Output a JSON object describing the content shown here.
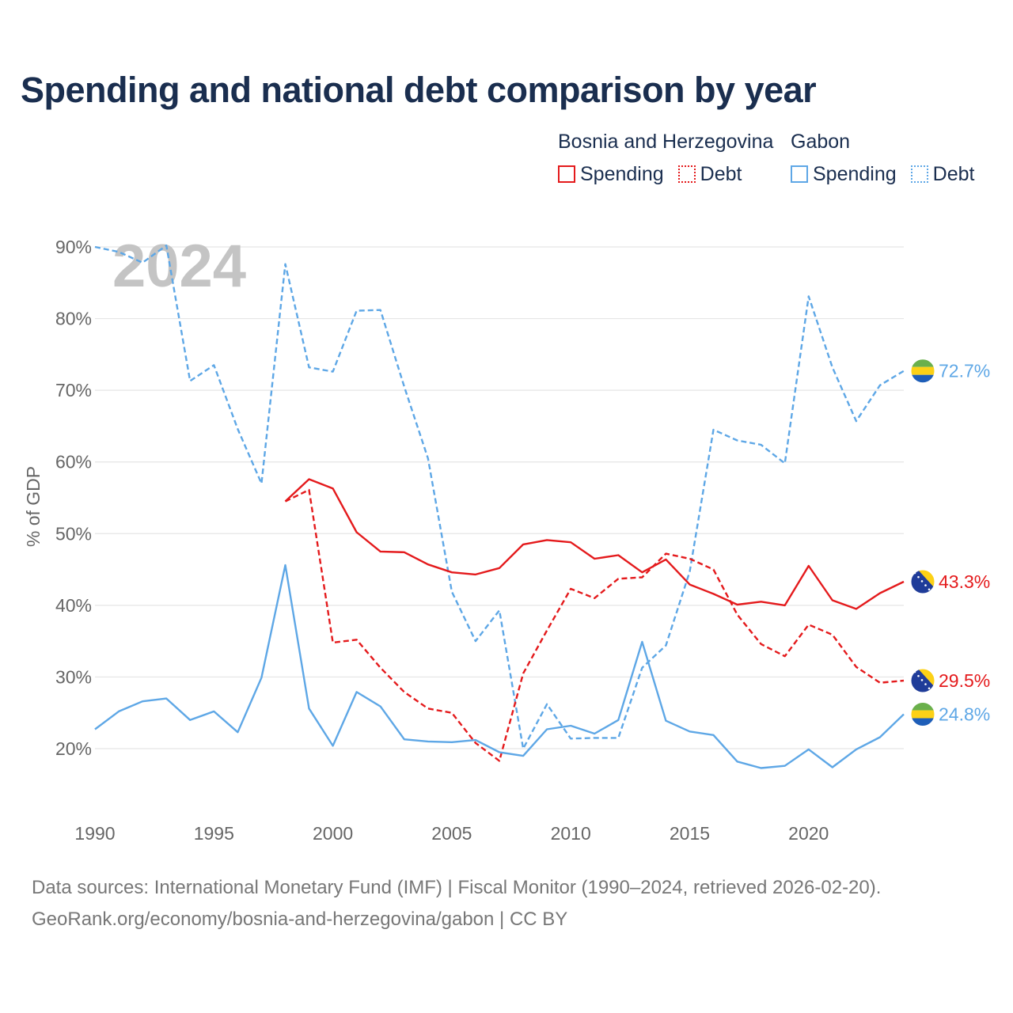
{
  "title": "Spending and national debt comparison by year",
  "legend": {
    "groups": [
      {
        "country": "Bosnia and Herzegovina",
        "color": "#e41a1c",
        "items": [
          {
            "label": "Spending",
            "style": "solid"
          },
          {
            "label": "Debt",
            "style": "dashed"
          }
        ]
      },
      {
        "country": "Gabon",
        "color": "#5ea7e6",
        "items": [
          {
            "label": "Spending",
            "style": "solid"
          },
          {
            "label": "Debt",
            "style": "dashed"
          }
        ]
      }
    ]
  },
  "chart_data": {
    "type": "line",
    "year_watermark": "2024",
    "ylabel": "% of GDP",
    "xlim": [
      1990,
      2024
    ],
    "ylim": [
      10,
      92
    ],
    "x_ticks": [
      1990,
      1995,
      2000,
      2005,
      2010,
      2015,
      2020
    ],
    "x_tick_labels": [
      "1990",
      "1995",
      "2000",
      "2005",
      "2010",
      "2015",
      "2020"
    ],
    "y_ticks": [
      20,
      30,
      40,
      50,
      60,
      70,
      80,
      90
    ],
    "y_tick_labels": [
      "20%",
      "30%",
      "40%",
      "50%",
      "60%",
      "70%",
      "80%",
      "90%"
    ],
    "gridlines": true,
    "series": [
      {
        "name": "Gabon Debt",
        "country": "Gabon",
        "measure": "Debt",
        "color": "#5ea7e6",
        "style": "dashed",
        "start_year": 1990,
        "values": [
          90.0,
          89.3,
          87.8,
          90.2,
          71.3,
          73.5,
          64.6,
          57.0,
          87.6,
          73.2,
          72.6,
          81.1,
          81.2,
          70.5,
          60.5,
          41.9,
          35.0,
          39.3,
          20.0,
          26.2,
          21.4,
          21.5,
          21.5,
          31.3,
          34.4,
          44.7,
          64.5,
          63.0,
          62.4,
          59.8,
          83.1,
          73.2,
          65.7,
          70.7,
          72.7
        ],
        "end_label": "72.7%",
        "flag": "gabon"
      },
      {
        "name": "Bosnia and Herzegovina Spending",
        "country": "Bosnia and Herzegovina",
        "measure": "Spending",
        "color": "#e41a1c",
        "style": "solid",
        "start_year": 1998,
        "values": [
          54.5,
          57.6,
          56.3,
          50.2,
          47.5,
          47.4,
          45.7,
          44.6,
          44.3,
          45.2,
          48.5,
          49.1,
          48.8,
          46.5,
          47.0,
          44.6,
          46.4,
          42.9,
          41.6,
          40.1,
          40.5,
          40.0,
          45.5,
          40.7,
          39.5,
          41.7,
          43.3
        ],
        "end_label": "43.3%",
        "flag": "bosnia"
      },
      {
        "name": "Bosnia and Herzegovina Debt",
        "country": "Bosnia and Herzegovina",
        "measure": "Debt",
        "color": "#e41a1c",
        "style": "dashed",
        "start_year": 1998,
        "values": [
          54.5,
          56.1,
          34.8,
          35.2,
          31.3,
          27.9,
          25.6,
          25.0,
          20.8,
          18.3,
          30.5,
          36.5,
          42.3,
          41.0,
          43.7,
          43.9,
          47.2,
          46.5,
          45.0,
          38.7,
          34.6,
          32.9,
          37.3,
          35.9,
          31.4,
          29.2,
          29.5
        ],
        "end_label": "29.5%",
        "flag": "bosnia"
      },
      {
        "name": "Gabon Spending",
        "country": "Gabon",
        "measure": "Spending",
        "color": "#5ea7e6",
        "style": "solid",
        "start_year": 1990,
        "values": [
          22.7,
          25.2,
          26.6,
          27.0,
          24.0,
          25.2,
          22.3,
          29.9,
          45.6,
          25.6,
          20.4,
          27.9,
          25.9,
          21.3,
          21.0,
          20.9,
          21.2,
          19.5,
          19.0,
          22.7,
          23.2,
          22.1,
          24.0,
          34.9,
          23.9,
          22.4,
          21.9,
          18.2,
          17.3,
          17.6,
          19.9,
          17.4,
          19.9,
          21.6,
          24.8
        ],
        "end_label": "24.8%",
        "flag": "gabon"
      }
    ]
  },
  "footer": {
    "source": "Data sources: International Monetary Fund (IMF) | Fiscal Monitor (1990–2024, retrieved 2026-02-20).",
    "credit": "GeoRank.org/economy/bosnia-and-herzegovina/gabon | CC BY"
  }
}
